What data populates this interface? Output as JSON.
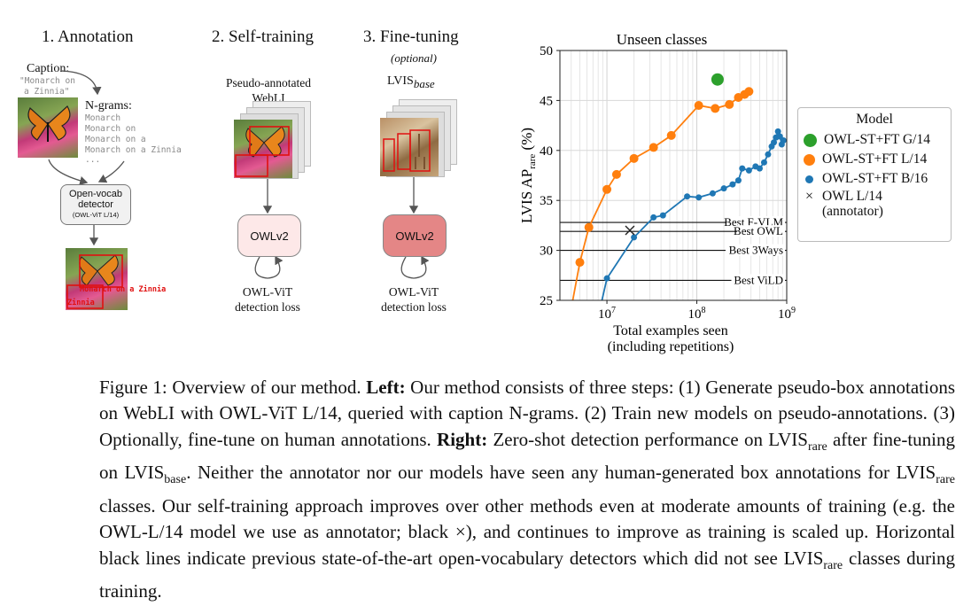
{
  "left_figure": {
    "step1_title": "1. Annotation",
    "step2_title": "2. Self-training",
    "step3_title": "3. Fine-tuning",
    "step3_optional": "(optional)",
    "caption_label": "Caption:",
    "caption_text_1": "\"Monarch on",
    "caption_text_2": "a Zinnia\"",
    "ngrams_label": "N-grams:",
    "ngrams": [
      "Monarch",
      "Monarch on",
      "Monarch on a",
      "Monarch on a Zinnia",
      "..."
    ],
    "detector_line1": "Open-vocab",
    "detector_line2": "detector",
    "detector_line3": "(OWL-ViT L/14)",
    "label_monarch": "Monarch on a Zinnia",
    "label_zinnia": "Zinnia",
    "pseudo_line1": "Pseudo-annotated",
    "pseudo_line2": "WebLI",
    "lvis_label": "LVIS",
    "lvis_sub": "base",
    "owlv2_label_a": "OWLv2",
    "owlv2_label_b": "OWLv2",
    "loss_a_line1": "OWL-ViT",
    "loss_a_line2": "detection loss",
    "loss_b_line1": "OWL-ViT",
    "loss_b_line2": "detection loss"
  },
  "chart_data": {
    "type": "line",
    "title": "Unseen classes",
    "xlabel_line1": "Total examples seen",
    "xlabel_line2": "(including repetitions)",
    "ylabel_main": "LVIS AP",
    "ylabel_sub": "rare",
    "ylabel_unit": " (%)",
    "xscale": "log",
    "xlim": [
      3000000,
      1000000000
    ],
    "ylim": [
      25,
      50
    ],
    "grid": true,
    "x_ticks": [
      {
        "v": 10000000,
        "base": "10",
        "exp": "7"
      },
      {
        "v": 100000000,
        "base": "10",
        "exp": "8"
      },
      {
        "v": 1000000000,
        "base": "10",
        "exp": "9"
      }
    ],
    "y_ticks": [
      25,
      30,
      35,
      40,
      45,
      50
    ],
    "series": [
      {
        "name": "OWL-ST+FT G/14",
        "color": "#2ca02c",
        "style": "point",
        "points": [
          [
            170000000,
            47.1
          ]
        ]
      },
      {
        "name": "OWL-ST+FT L/14",
        "color": "#ff7f0e",
        "style": "line",
        "points": [
          [
            3700000,
            22.5
          ],
          [
            5000000,
            28.8
          ],
          [
            6300000,
            32.3
          ],
          [
            10000000,
            36.1
          ],
          [
            12800000,
            37.6
          ],
          [
            20000000,
            39.2
          ],
          [
            33000000,
            40.3
          ],
          [
            52000000,
            41.5
          ],
          [
            105000000,
            44.5
          ],
          [
            160000000,
            44.2
          ],
          [
            230000000,
            44.6
          ],
          [
            290000000,
            45.3
          ],
          [
            340000000,
            45.6
          ],
          [
            380000000,
            45.9
          ]
        ]
      },
      {
        "name": "OWL-ST+FT B/16",
        "color": "#1f77b4",
        "style": "line",
        "points": [
          [
            7700000,
            22.7
          ],
          [
            10000000,
            27.2
          ],
          [
            20000000,
            31.3
          ],
          [
            33000000,
            33.3
          ],
          [
            42000000,
            33.5
          ],
          [
            78000000,
            35.4
          ],
          [
            105000000,
            35.3
          ],
          [
            150000000,
            35.7
          ],
          [
            200000000,
            36.2
          ],
          [
            250000000,
            36.6
          ],
          [
            290000000,
            37.0
          ],
          [
            320000000,
            38.2
          ],
          [
            380000000,
            38.0
          ],
          [
            450000000,
            38.4
          ],
          [
            500000000,
            38.2
          ],
          [
            560000000,
            38.8
          ],
          [
            620000000,
            39.6
          ],
          [
            680000000,
            40.4
          ],
          [
            720000000,
            40.8
          ],
          [
            760000000,
            41.3
          ],
          [
            800000000,
            41.9
          ],
          [
            840000000,
            41.4
          ],
          [
            880000000,
            40.6
          ],
          [
            920000000,
            41.0
          ]
        ]
      },
      {
        "name": "OWL L/14",
        "name_line2": "(annotator)",
        "color": "#222222",
        "style": "cross",
        "points": [
          [
            18000000,
            32.0
          ]
        ]
      }
    ],
    "reference_lines": [
      {
        "label": "Best F-VLM",
        "y": 32.8
      },
      {
        "label": "Best OWL",
        "y": 31.9
      },
      {
        "label": "Best 3Ways",
        "y": 30.0
      },
      {
        "label": "Best ViLD",
        "y": 27.0
      }
    ],
    "legend_title": "Model",
    "legend_placement": "right"
  },
  "caption": {
    "fig_label": "Figure 1: Overview of our method.",
    "left_bold": "Left:",
    "left_text": "Our method consists of three steps: (1) Generate pseudo-box annotations on WebLI with OWL-ViT L/14, queried with caption N-grams. (2) Train new models on pseudo-annotations. (3) Optionally, fine-tune on human annotations.",
    "right_bold": "Right:",
    "right_text_1": "Zero-shot detection performance on LVIS",
    "sub_rare_1": "rare",
    "right_text_2": "after fine-tuning on LVIS",
    "sub_base": "base",
    "right_text_3": ". Neither the annotator nor our models have seen any human-generated box annotations for LVIS",
    "sub_rare_2": "rare",
    "right_text_4": "classes. Our self-training approach improves over other methods even at moderate amounts of training (e.g. the OWL-L/14 model we use as annotator; black ×), and continues to improve as training is scaled up. Horizontal black lines indicate previous state-of-the-art open-vocabulary detectors which did not see LVIS",
    "sub_rare_3": "rare",
    "right_text_5": "classes during training."
  }
}
